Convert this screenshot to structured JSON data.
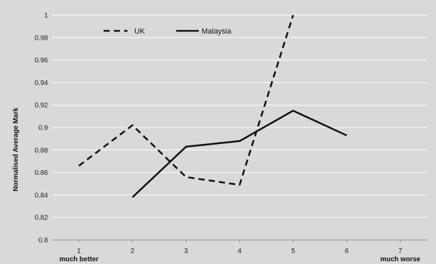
{
  "chart_data": {
    "type": "line",
    "title": "",
    "xlabel": "",
    "ylabel": "Normalised Average Mark",
    "x": [
      1,
      2,
      3,
      4,
      5,
      6,
      7
    ],
    "x_tick_labels": [
      "1",
      "2",
      "3",
      "4",
      "5",
      "6",
      "7"
    ],
    "x_tick_sublabels": [
      "much better",
      "",
      "",
      "",
      "",
      "",
      "much worse"
    ],
    "xlim": [
      0.5,
      7.5
    ],
    "ylim": [
      0.8,
      1.0
    ],
    "y_ticks": [
      0.8,
      0.82,
      0.84,
      0.86,
      0.88,
      0.9,
      0.92,
      0.94,
      0.96,
      0.98,
      1
    ],
    "y_tick_labels": [
      "0.8",
      "0.82",
      "0.84",
      "0.86",
      "0.88",
      "0.9",
      "0.92",
      "0.94",
      "0.96",
      "0.98",
      "1"
    ],
    "grid": true,
    "legend_position": "top-left",
    "series": [
      {
        "name": "UK",
        "style": "dashed",
        "color": "#111111",
        "x": [
          1,
          2,
          3,
          4,
          5
        ],
        "values": [
          0.866,
          0.902,
          0.856,
          0.849,
          1.0
        ]
      },
      {
        "name": "Malaysia",
        "style": "solid",
        "color": "#111111",
        "x": [
          2,
          3,
          4,
          5,
          6
        ],
        "values": [
          0.838,
          0.883,
          0.888,
          0.915,
          0.893
        ]
      }
    ]
  },
  "colors": {
    "plot_background": "#d9d9d9",
    "gridline": "#ffffff",
    "line": "#111111"
  }
}
